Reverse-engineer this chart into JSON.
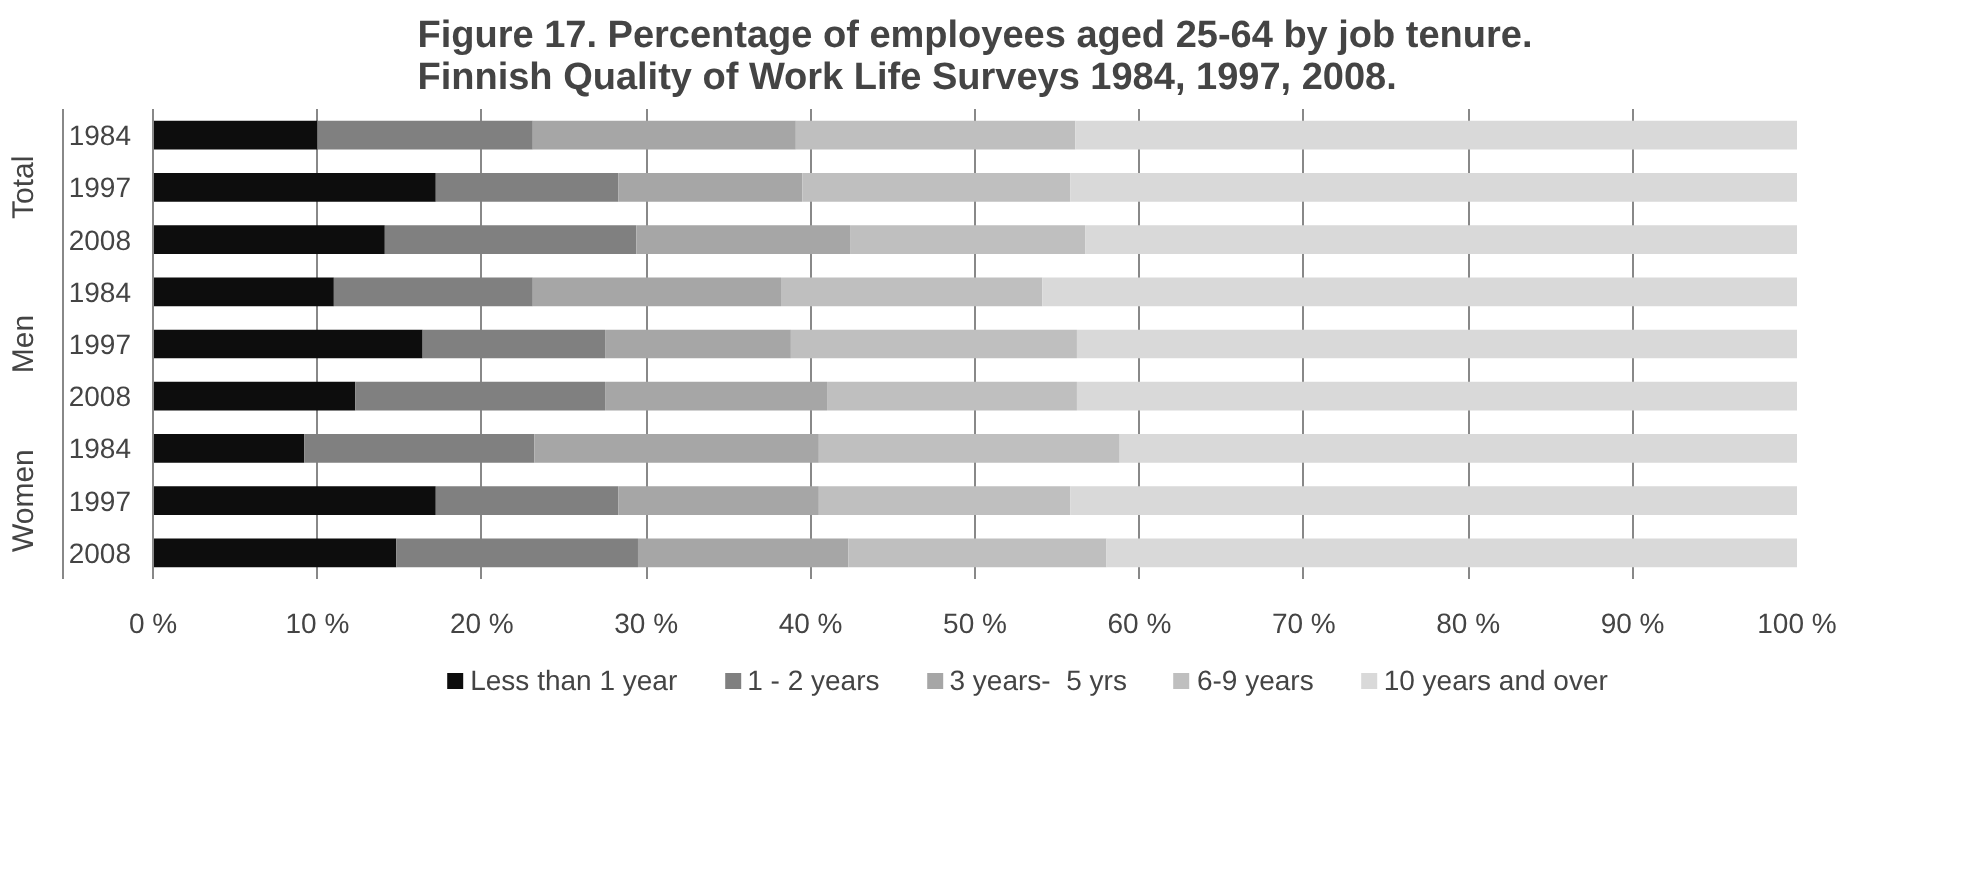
{
  "chart_data": {
    "type": "bar",
    "orientation": "horizontal",
    "stacked": true,
    "title": "Figure 17. Percentage of employees aged 25-64 by job tenure.\nFinnish Quality of Work Life Surveys 1984, 1997, 2008.",
    "categories": [
      "1984",
      "1997",
      "2008",
      "1984",
      "1997",
      "2008",
      "1984",
      "1997",
      "2008"
    ],
    "annotations": [
      "Total",
      "Men",
      "Women"
    ],
    "series": [
      {
        "name": "Less than 1 year",
        "color": "#0d0d0d",
        "values": [
          10.0,
          17.2,
          14.1,
          11.0,
          16.4,
          12.3,
          9.2,
          17.2,
          14.8
        ]
      },
      {
        "name": "1 - 2 years",
        "color": "#808080",
        "values": [
          13.1,
          11.1,
          15.3,
          12.1,
          11.1,
          15.2,
          14.0,
          11.1,
          14.7
        ]
      },
      {
        "name": "3 years-  5 yrs",
        "color": "#a6a6a6",
        "values": [
          16.0,
          11.2,
          13.0,
          15.1,
          11.3,
          13.5,
          17.3,
          12.2,
          12.8
        ]
      },
      {
        "name": "6-9 years",
        "color": "#bfbfbf",
        "values": [
          17.0,
          16.3,
          14.3,
          15.9,
          17.4,
          15.2,
          18.3,
          15.3,
          15.7
        ]
      },
      {
        "name": "10 years and over",
        "color": "#d9d9d9",
        "values": [
          43.9,
          44.2,
          43.3,
          45.9,
          43.8,
          43.8,
          41.2,
          44.2,
          42.0
        ]
      }
    ],
    "xlim": [
      0,
      100
    ],
    "xticks": [
      {
        "value": 0,
        "label": "0 %"
      },
      {
        "value": 10,
        "label": "10 %"
      },
      {
        "value": 20,
        "label": "20 %"
      },
      {
        "value": 30,
        "label": "30 %"
      },
      {
        "value": 40,
        "label": "40 %"
      },
      {
        "value": 50,
        "label": "50 %"
      },
      {
        "value": 60,
        "label": "60 %"
      },
      {
        "value": 70,
        "label": "70 %"
      },
      {
        "value": 80,
        "label": "80 %"
      },
      {
        "value": 90,
        "label": "90 %"
      },
      {
        "value": 100,
        "label": "100 %"
      }
    ],
    "grid": "x",
    "legend": "bottom"
  }
}
